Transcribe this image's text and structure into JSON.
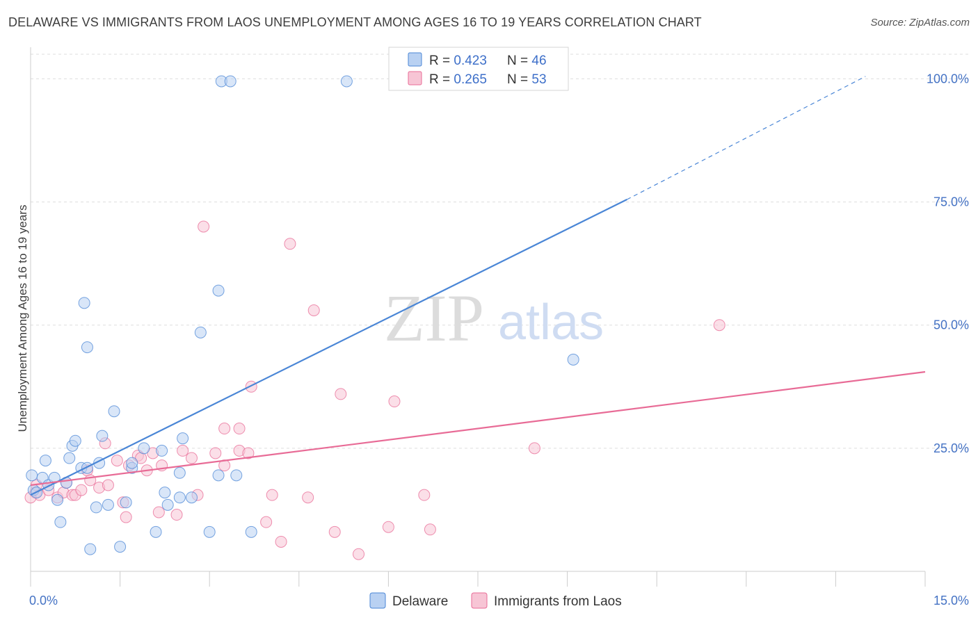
{
  "chart_data": {
    "type": "scatter",
    "title": "DELAWARE VS IMMIGRANTS FROM LAOS UNEMPLOYMENT AMONG AGES 16 TO 19 YEARS CORRELATION CHART",
    "source": "Source: ZipAtlas.com",
    "xlabel": "",
    "ylabel": "Unemployment Among Ages 16 to 19 years",
    "xlim": [
      0,
      15
    ],
    "ylim": [
      0,
      105
    ],
    "x_tick_labels": [
      {
        "value": 0,
        "label": "0.0%"
      },
      {
        "value": 15,
        "label": "15.0%"
      }
    ],
    "y_tick_labels": [
      {
        "value": 25,
        "label": "25.0%"
      },
      {
        "value": 50,
        "label": "50.0%"
      },
      {
        "value": 75,
        "label": "75.0%"
      },
      {
        "value": 100,
        "label": "100.0%"
      }
    ],
    "watermark": {
      "zip": "ZIP",
      "atlas": "atlas"
    },
    "legend": [
      {
        "r_label": "R = ",
        "r_value": "0.423",
        "n_label": "N = ",
        "n_value": "46"
      },
      {
        "r_label": "R = ",
        "r_value": "0.265",
        "n_label": "N = ",
        "n_value": "53"
      }
    ],
    "series": [
      {
        "name": "Delaware",
        "color": "#4a86d6",
        "fill": "#b9d1f2",
        "trend": {
          "x0": 0.0,
          "y0": 15.5,
          "x1": 10.0,
          "y1": 75.5,
          "dash_to_x": 14.0,
          "dash_to_y": 100.5
        },
        "points": [
          [
            0.02,
            19.5
          ],
          [
            0.05,
            16.5
          ],
          [
            0.1,
            16.0
          ],
          [
            0.2,
            19.0
          ],
          [
            0.25,
            22.5
          ],
          [
            0.3,
            17.5
          ],
          [
            0.4,
            19.0
          ],
          [
            0.45,
            14.5
          ],
          [
            0.5,
            10.0
          ],
          [
            0.6,
            18.0
          ],
          [
            0.65,
            23.0
          ],
          [
            0.7,
            25.5
          ],
          [
            0.75,
            26.5
          ],
          [
            0.85,
            21.0
          ],
          [
            0.9,
            54.5
          ],
          [
            0.95,
            21.0
          ],
          [
            0.95,
            45.5
          ],
          [
            1.0,
            4.5
          ],
          [
            1.1,
            13.0
          ],
          [
            1.15,
            22.0
          ],
          [
            1.2,
            27.5
          ],
          [
            1.3,
            13.5
          ],
          [
            1.4,
            32.5
          ],
          [
            1.5,
            5.0
          ],
          [
            1.6,
            14.0
          ],
          [
            1.7,
            21.0
          ],
          [
            1.7,
            22.0
          ],
          [
            1.9,
            25.0
          ],
          [
            2.1,
            8.0
          ],
          [
            2.2,
            24.5
          ],
          [
            2.25,
            16.0
          ],
          [
            2.3,
            13.5
          ],
          [
            2.5,
            20.0
          ],
          [
            2.5,
            15.0
          ],
          [
            2.55,
            27.0
          ],
          [
            2.7,
            15.0
          ],
          [
            2.85,
            48.5
          ],
          [
            3.0,
            8.0
          ],
          [
            3.15,
            19.5
          ],
          [
            3.15,
            57.0
          ],
          [
            3.2,
            99.5
          ],
          [
            3.35,
            99.5
          ],
          [
            3.45,
            19.5
          ],
          [
            3.7,
            8.0
          ],
          [
            5.3,
            99.5
          ],
          [
            9.1,
            43.0
          ]
        ]
      },
      {
        "name": "Immigrants from Laos",
        "color": "#e86b96",
        "fill": "#f7c5d5",
        "trend": {
          "x0": 0.0,
          "y0": 17.5,
          "x1": 15.0,
          "y1": 40.5
        },
        "points": [
          [
            0.08,
            16.0
          ],
          [
            0.15,
            15.5
          ],
          [
            0.3,
            16.5
          ],
          [
            0.45,
            15.0
          ],
          [
            0.55,
            16.0
          ],
          [
            0.6,
            18.0
          ],
          [
            0.7,
            15.5
          ],
          [
            0.75,
            15.5
          ],
          [
            0.85,
            16.5
          ],
          [
            0.95,
            20.5
          ],
          [
            1.0,
            18.5
          ],
          [
            1.15,
            17.0
          ],
          [
            1.25,
            26.0
          ],
          [
            1.3,
            17.5
          ],
          [
            1.45,
            22.5
          ],
          [
            1.55,
            14.0
          ],
          [
            1.6,
            11.0
          ],
          [
            1.65,
            21.5
          ],
          [
            1.8,
            23.5
          ],
          [
            1.85,
            23.0
          ],
          [
            1.95,
            20.5
          ],
          [
            2.05,
            24.0
          ],
          [
            2.15,
            12.0
          ],
          [
            2.2,
            21.5
          ],
          [
            2.45,
            11.5
          ],
          [
            2.55,
            24.5
          ],
          [
            2.7,
            23.0
          ],
          [
            2.8,
            15.5
          ],
          [
            2.9,
            70.0
          ],
          [
            3.1,
            24.0
          ],
          [
            3.25,
            29.0
          ],
          [
            3.25,
            21.5
          ],
          [
            3.5,
            29.0
          ],
          [
            3.5,
            24.5
          ],
          [
            3.65,
            24.0
          ],
          [
            3.7,
            37.5
          ],
          [
            3.95,
            10.0
          ],
          [
            4.05,
            15.5
          ],
          [
            4.2,
            6.0
          ],
          [
            4.35,
            66.5
          ],
          [
            4.65,
            15.0
          ],
          [
            4.75,
            53.0
          ],
          [
            5.1,
            8.0
          ],
          [
            5.2,
            36.0
          ],
          [
            5.5,
            3.5
          ],
          [
            6.0,
            9.0
          ],
          [
            6.1,
            34.5
          ],
          [
            6.6,
            15.5
          ],
          [
            6.7,
            8.5
          ],
          [
            8.45,
            25.0
          ],
          [
            11.55,
            50.0
          ],
          [
            0.0,
            15.0
          ],
          [
            0.1,
            17.5
          ]
        ]
      }
    ]
  }
}
